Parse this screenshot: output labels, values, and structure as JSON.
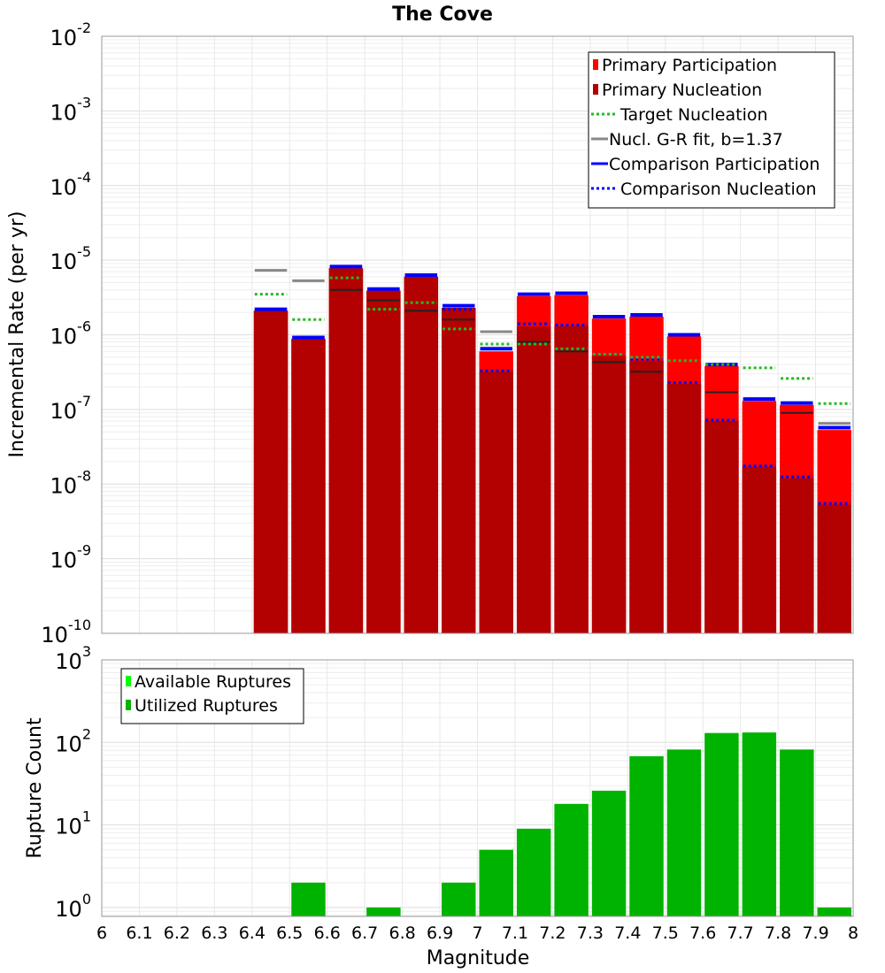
{
  "chart_data": [
    {
      "type": "bar",
      "title": "The Cove",
      "ylabel": "Incremental Rate (per yr)",
      "yscale": "log",
      "ylim": [
        1e-10,
        0.01
      ],
      "xlim": [
        6.0,
        8.0
      ],
      "grid": true,
      "legend_position": "top-right",
      "legend": [
        {
          "label": "Primary Participation",
          "style": "bar",
          "color": "#ff0000"
        },
        {
          "label": "Primary Nucleation",
          "style": "bar",
          "color": "#b30000"
        },
        {
          "label": "Target Nucleation",
          "style": "dotted",
          "color": "#22bb22"
        },
        {
          "label": "Nucl. G-R fit, b=1.37",
          "style": "solid",
          "color": "#888888"
        },
        {
          "label": "Comparison Participation",
          "style": "solid",
          "color": "#0000ff"
        },
        {
          "label": "Comparison Nucleation",
          "style": "dotted",
          "color": "#0000ff"
        }
      ],
      "y_ticks": [
        {
          "base": "10",
          "exp": "-2",
          "value": 0.01
        },
        {
          "base": "10",
          "exp": "-3",
          "value": 0.001
        },
        {
          "base": "10",
          "exp": "-4",
          "value": 0.0001
        },
        {
          "base": "10",
          "exp": "-5",
          "value": 1e-05
        },
        {
          "base": "10",
          "exp": "-6",
          "value": 1e-06
        },
        {
          "base": "10",
          "exp": "-7",
          "value": 1e-07
        },
        {
          "base": "10",
          "exp": "-8",
          "value": 1e-08
        },
        {
          "base": "10",
          "exp": "-9",
          "value": 1e-09
        },
        {
          "base": "10",
          "exp": "-10",
          "value": 1e-10
        }
      ],
      "bin_width": 0.1,
      "x": [
        6.45,
        6.55,
        6.65,
        6.75,
        6.85,
        6.95,
        7.05,
        7.15,
        7.25,
        7.35,
        7.45,
        7.55,
        7.65,
        7.75,
        7.85,
        7.95
      ],
      "series": [
        {
          "name": "Primary Participation",
          "values": [
            2.1e-06,
            8.8e-07,
            7.8e-06,
            3.9e-06,
            6e-06,
            2.3e-06,
            6e-07,
            3.3e-06,
            3.4e-06,
            1.65e-06,
            1.75e-06,
            9.5e-07,
            3.8e-07,
            1.3e-07,
            1.15e-07,
            5.3e-08
          ]
        },
        {
          "name": "Primary Nucleation",
          "values": [
            2.1e-06,
            8.8e-07,
            7.8e-06,
            3.9e-06,
            6e-06,
            2.3e-06,
            3.2e-07,
            1.3e-06,
            1.3e-06,
            5.2e-07,
            4.5e-07,
            2.2e-07,
            7e-08,
            1.7e-08,
            1.2e-08,
            5.3e-09
          ]
        },
        {
          "name": "Target Nucleation",
          "values": [
            3.5e-06,
            1.6e-06,
            5.8e-06,
            2.2e-06,
            2.7e-06,
            1.2e-06,
            7.5e-07,
            7.5e-07,
            6.5e-07,
            5.5e-07,
            5e-07,
            4.5e-07,
            4e-07,
            3.6e-07,
            2.6e-07,
            1.2e-07
          ]
        },
        {
          "name": "Nucl. G-R fit, b=1.37",
          "values": [
            7.3e-06,
            5.3e-06,
            null,
            null,
            null,
            null,
            1.1e-06,
            null,
            null,
            null,
            null,
            null,
            null,
            null,
            null,
            6.5e-08
          ]
        },
        {
          "name": "Comparison Participation",
          "values": [
            2.2e-06,
            9.2e-07,
            8.2e-06,
            4.1e-06,
            6.3e-06,
            2.45e-06,
            6.5e-07,
            3.5e-06,
            3.6e-06,
            1.75e-06,
            1.85e-06,
            1e-06,
            4e-07,
            1.38e-07,
            1.22e-07,
            5.7e-08
          ]
        },
        {
          "name": "Comparison Nucleation",
          "values": [
            2.2e-06,
            9.2e-07,
            8.2e-06,
            4.1e-06,
            6.3e-06,
            2.2e-06,
            3.3e-07,
            1.4e-06,
            1.35e-06,
            5.5e-07,
            4.7e-07,
            2.3e-07,
            7.2e-08,
            1.75e-08,
            1.25e-08,
            5.5e-09
          ]
        }
      ],
      "extra_lines": {
        "note_free": true,
        "dark_lines": [
          null,
          null,
          4e-06,
          2.9e-06,
          2.1e-06,
          1.6e-06,
          null,
          8e-07,
          6e-07,
          4.3e-07,
          3.2e-07,
          null,
          1.7e-07,
          null,
          9e-08,
          null
        ]
      }
    },
    {
      "type": "bar",
      "ylabel": "Rupture Count",
      "xlabel": "Magnitude",
      "yscale": "log",
      "ylim": [
        0.78,
        1000
      ],
      "xlim": [
        6.0,
        8.0
      ],
      "grid": true,
      "legend_position": "top-left",
      "legend": [
        {
          "label": "Available Ruptures",
          "style": "bar",
          "color": "#00ff00"
        },
        {
          "label": "Utilized Ruptures",
          "style": "bar",
          "color": "#00b300"
        }
      ],
      "y_ticks": [
        {
          "base": "10",
          "exp": "3",
          "value": 1000
        },
        {
          "base": "10",
          "exp": "2",
          "value": 100
        },
        {
          "base": "10",
          "exp": "1",
          "value": 10
        },
        {
          "base": "10",
          "exp": "0",
          "value": 1
        }
      ],
      "x_ticks": [
        "6",
        "6.1",
        "6.2",
        "6.3",
        "6.4",
        "6.5",
        "6.6",
        "6.7",
        "6.8",
        "6.9",
        "7",
        "7.1",
        "7.2",
        "7.3",
        "7.4",
        "7.5",
        "7.6",
        "7.7",
        "7.8",
        "7.9",
        "8"
      ],
      "bin_width": 0.1,
      "x": [
        6.55,
        6.75,
        6.95,
        7.05,
        7.15,
        7.25,
        7.35,
        7.45,
        7.55,
        7.65,
        7.75,
        7.85,
        7.95
      ],
      "series": [
        {
          "name": "Utilized Ruptures",
          "values": [
            2,
            1,
            2,
            5,
            9,
            18,
            26,
            68,
            82,
            130,
            132,
            82,
            1
          ]
        }
      ]
    }
  ]
}
